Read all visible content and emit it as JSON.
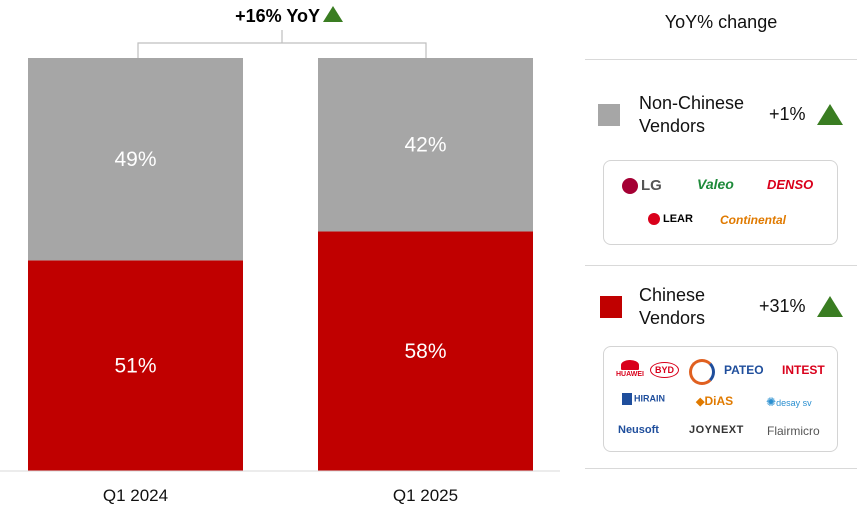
{
  "chart_data": {
    "type": "bar",
    "stacked": true,
    "categories": [
      "Q1 2024",
      "Q1 2025"
    ],
    "series": [
      {
        "name": "Chinese Vendors",
        "values": [
          51,
          58
        ],
        "labels": [
          "51%",
          "58%"
        ],
        "color": "#c00000"
      },
      {
        "name": "Non-Chinese Vendors",
        "values": [
          49,
          42
        ],
        "labels": [
          "49%",
          "42%"
        ],
        "color": "#a6a6a6"
      }
    ],
    "ylim": [
      0,
      100
    ],
    "annotation": "+16% YoY",
    "grid": false
  },
  "legend": {
    "title": "YoY% change",
    "items": [
      {
        "name_line1": "Non-Chinese",
        "name_line2": "Vendors",
        "change": "+1%",
        "color": "#a6a6a6",
        "logos": [
          "LG",
          "Valeo",
          "DENSO",
          "LEAR",
          "Continental"
        ]
      },
      {
        "name_line1": "Chinese",
        "name_line2": "Vendors",
        "change": "+31%",
        "color": "#c00000",
        "logos": [
          "HUAWEI",
          "BYD",
          "PATEO",
          "INTEST",
          "HIRAIN",
          "DiAS",
          "desay sv",
          "Neusoft",
          "JOYNEXT",
          "Flairmicro"
        ]
      }
    ]
  },
  "colors": {
    "up_triangle": "#3a7d22"
  }
}
